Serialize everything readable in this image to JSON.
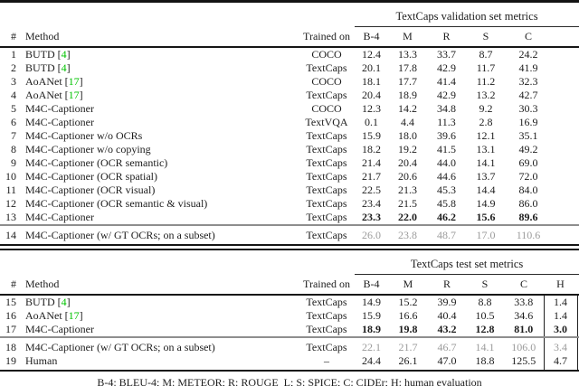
{
  "colors": {
    "cite_green": "#00c300",
    "dim_gray": "#9b9b9b",
    "midrule_gray": "#8e8e8e",
    "rule_black": "#141414"
  },
  "footnote": {
    "text": "B-4: BLEU-4; M: METEOR; R: ROUGE_L; S: SPICE; C: CIDEr; H: human evaluation"
  },
  "validation_table": {
    "group_header": "TextCaps validation set metrics",
    "headers": {
      "num": "#",
      "method": "Method",
      "trained_on": "Trained on"
    },
    "metric_headers": [
      "B-4",
      "M",
      "R",
      "S",
      "C"
    ],
    "rows": [
      {
        "num": "1",
        "method": "BUTD",
        "cite": "4",
        "trained_on": "COCO",
        "vals": [
          "12.4",
          "13.3",
          "33.7",
          "8.7",
          "24.2"
        ]
      },
      {
        "num": "2",
        "method": "BUTD",
        "cite": "4",
        "trained_on": "TextCaps",
        "vals": [
          "20.1",
          "17.8",
          "42.9",
          "11.7",
          "41.9"
        ]
      },
      {
        "num": "3",
        "method": "AoANet",
        "cite": "17",
        "trained_on": "COCO",
        "vals": [
          "18.1",
          "17.7",
          "41.4",
          "11.2",
          "32.3"
        ]
      },
      {
        "num": "4",
        "method": "AoANet",
        "cite": "17",
        "trained_on": "TextCaps",
        "vals": [
          "20.4",
          "18.9",
          "42.9",
          "13.2",
          "42.7"
        ]
      },
      {
        "num": "5",
        "method": "M4C-Captioner",
        "trained_on": "COCO",
        "vals": [
          "12.3",
          "14.2",
          "34.8",
          "9.2",
          "30.3"
        ]
      },
      {
        "num": "6",
        "method": "M4C-Captioner",
        "trained_on": "TextVQA",
        "vals": [
          "0.1",
          "4.4",
          "11.3",
          "2.8",
          "16.9"
        ]
      },
      {
        "num": "7",
        "method": "M4C-Captioner w/o OCRs",
        "trained_on": "TextCaps",
        "vals": [
          "15.9",
          "18.0",
          "39.6",
          "12.1",
          "35.1"
        ]
      },
      {
        "num": "8",
        "method": "M4C-Captioner w/o copying",
        "trained_on": "TextCaps",
        "vals": [
          "18.2",
          "19.2",
          "41.5",
          "13.1",
          "49.2"
        ]
      },
      {
        "num": "9",
        "method": "M4C-Captioner (OCR semantic)",
        "trained_on": "TextCaps",
        "vals": [
          "21.4",
          "20.4",
          "44.0",
          "14.1",
          "69.0"
        ]
      },
      {
        "num": "10",
        "method": "M4C-Captioner (OCR spatial)",
        "trained_on": "TextCaps",
        "vals": [
          "21.7",
          "20.6",
          "44.6",
          "13.7",
          "72.0"
        ]
      },
      {
        "num": "11",
        "method": "M4C-Captioner (OCR visual)",
        "trained_on": "TextCaps",
        "vals": [
          "22.5",
          "21.3",
          "45.3",
          "14.4",
          "84.0"
        ]
      },
      {
        "num": "12",
        "method": "M4C-Captioner (OCR semantic & visual)",
        "trained_on": "TextCaps",
        "vals": [
          "23.4",
          "21.5",
          "45.8",
          "14.9",
          "86.0"
        ]
      },
      {
        "num": "13",
        "method": "M4C-Captioner",
        "trained_on": "TextCaps",
        "vals": [
          "23.3",
          "22.0",
          "46.2",
          "15.6",
          "89.6"
        ],
        "bold": true
      }
    ],
    "subset_rows": [
      {
        "num": "14",
        "method": "M4C-Captioner (w/ GT OCRs; on a subset)",
        "trained_on": "TextCaps",
        "vals": [
          "26.0",
          "23.8",
          "48.7",
          "17.0",
          "110.6"
        ],
        "dim": true
      }
    ]
  },
  "test_table": {
    "group_header": "TextCaps test set metrics",
    "headers": {
      "num": "#",
      "method": "Method",
      "trained_on": "Trained on"
    },
    "metric_headers": [
      "B-4",
      "M",
      "R",
      "S",
      "C",
      "H"
    ],
    "rows": [
      {
        "num": "15",
        "method": "BUTD",
        "cite": "4",
        "trained_on": "TextCaps",
        "vals": [
          "14.9",
          "15.2",
          "39.9",
          "8.8",
          "33.8",
          "1.4"
        ]
      },
      {
        "num": "16",
        "method": "AoANet",
        "cite": "17",
        "trained_on": "TextCaps",
        "vals": [
          "15.9",
          "16.6",
          "40.4",
          "10.5",
          "34.6",
          "1.4"
        ]
      },
      {
        "num": "17",
        "method": "M4C-Captioner",
        "trained_on": "TextCaps",
        "vals": [
          "18.9",
          "19.8",
          "43.2",
          "12.8",
          "81.0",
          "3.0"
        ],
        "bold": true
      }
    ],
    "subset_rows": [
      {
        "num": "18",
        "method": "M4C-Captioner (w/ GT OCRs; on a subset)",
        "trained_on": "TextCaps",
        "vals": [
          "22.1",
          "21.7",
          "46.7",
          "14.1",
          "106.0",
          "3.4"
        ],
        "dim": true
      },
      {
        "num": "19",
        "method": "Human",
        "trained_on": "–",
        "vals": [
          "24.4",
          "26.1",
          "47.0",
          "18.8",
          "125.5",
          "4.7"
        ]
      }
    ]
  }
}
